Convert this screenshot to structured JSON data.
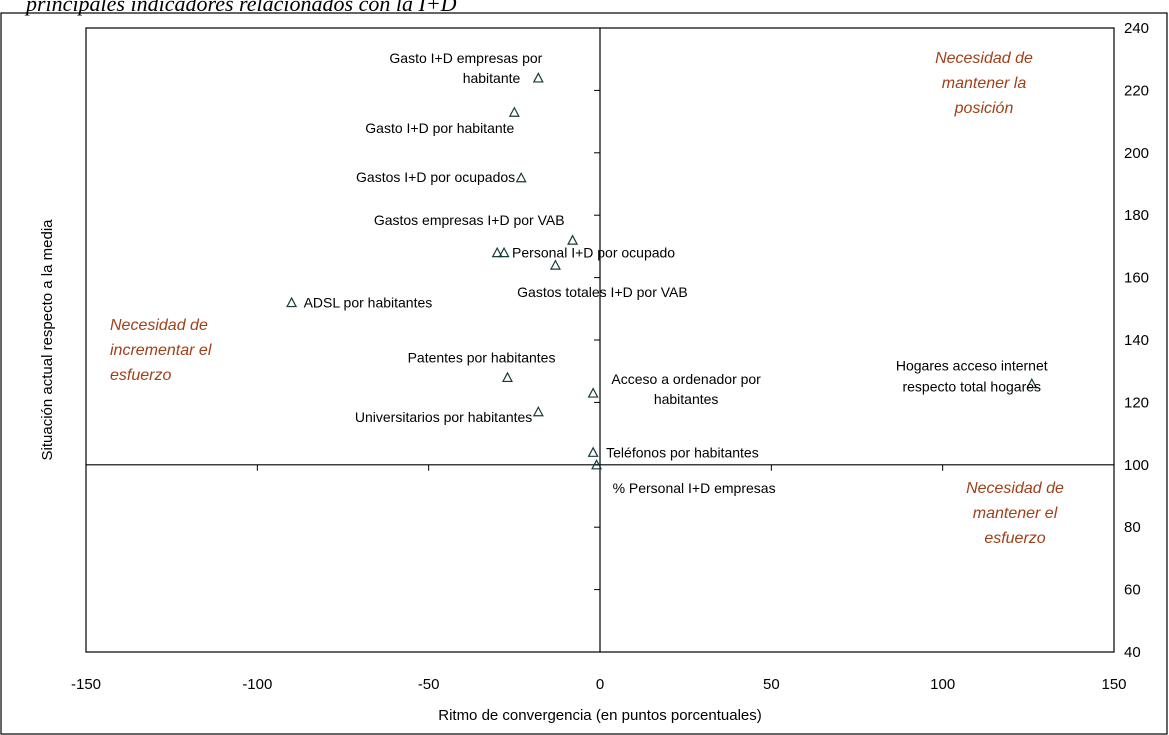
{
  "figure": {
    "title_fragment": "principales indicadores relacionados con la I+D"
  },
  "chart_data": {
    "type": "scatter",
    "xlabel": "Ritmo de convergencia (en puntos porcentuales)",
    "ylabel": "Situación actual respecto a la media",
    "xlim": [
      -150,
      150
    ],
    "ylim": [
      40,
      240
    ],
    "x_ticks": [
      -150,
      -100,
      -50,
      0,
      50,
      100,
      150
    ],
    "y_ticks": [
      40,
      60,
      80,
      100,
      120,
      140,
      160,
      180,
      200,
      220,
      240
    ],
    "reference_lines": {
      "x": 0,
      "y": 100
    },
    "grid": false,
    "marker": "triangle",
    "quadrant_labels": [
      {
        "lines": [
          "Necesidad de",
          "mantener la",
          "posición"
        ],
        "position": "top-right"
      },
      {
        "lines": [
          "Necesidad de",
          "incrementar el",
          "esfuerzo"
        ],
        "position": "middle-left"
      },
      {
        "lines": [
          "Necesidad de",
          "mantener el",
          "esfuerzo"
        ],
        "position": "bottom-right"
      }
    ],
    "points": [
      {
        "x": -18,
        "y": 224,
        "label": [
          "Gasto I+D empresas por",
          "habitante"
        ]
      },
      {
        "x": -25,
        "y": 213,
        "label": [
          "Gasto I+D por habitante"
        ]
      },
      {
        "x": -23,
        "y": 192,
        "label": [
          "Gastos I+D por ocupados"
        ]
      },
      {
        "x": -8,
        "y": 172,
        "label": [
          "Gastos empresas I+D por VAB"
        ]
      },
      {
        "x": -30,
        "y": 168,
        "label": []
      },
      {
        "x": -28,
        "y": 168,
        "label": [
          "Personal I+D por ocupado"
        ]
      },
      {
        "x": -13,
        "y": 164,
        "label": [
          "Gastos totales I+D por VAB"
        ]
      },
      {
        "x": -90,
        "y": 152,
        "label": [
          "ADSL por  habitantes"
        ]
      },
      {
        "x": -27,
        "y": 128,
        "label": [
          "Patentes por habitantes"
        ]
      },
      {
        "x": -2,
        "y": 123,
        "label": [
          "Acceso a ordenador por",
          "habitantes"
        ]
      },
      {
        "x": -18,
        "y": 117,
        "label": [
          "Universitarios por  habitantes"
        ]
      },
      {
        "x": 126,
        "y": 126,
        "label": [
          "Hogares acceso internet",
          "respecto total hogares"
        ]
      },
      {
        "x": -2,
        "y": 104,
        "label": [
          "Teléfonos por  habitantes"
        ]
      },
      {
        "x": -1,
        "y": 100,
        "label": [
          "% Personal I+D empresas"
        ]
      }
    ],
    "colors": {
      "quadrant_text": "#a0401a",
      "axis": "#000000",
      "marker_stroke": "#1a3a3a",
      "point_label": "#000000"
    }
  }
}
